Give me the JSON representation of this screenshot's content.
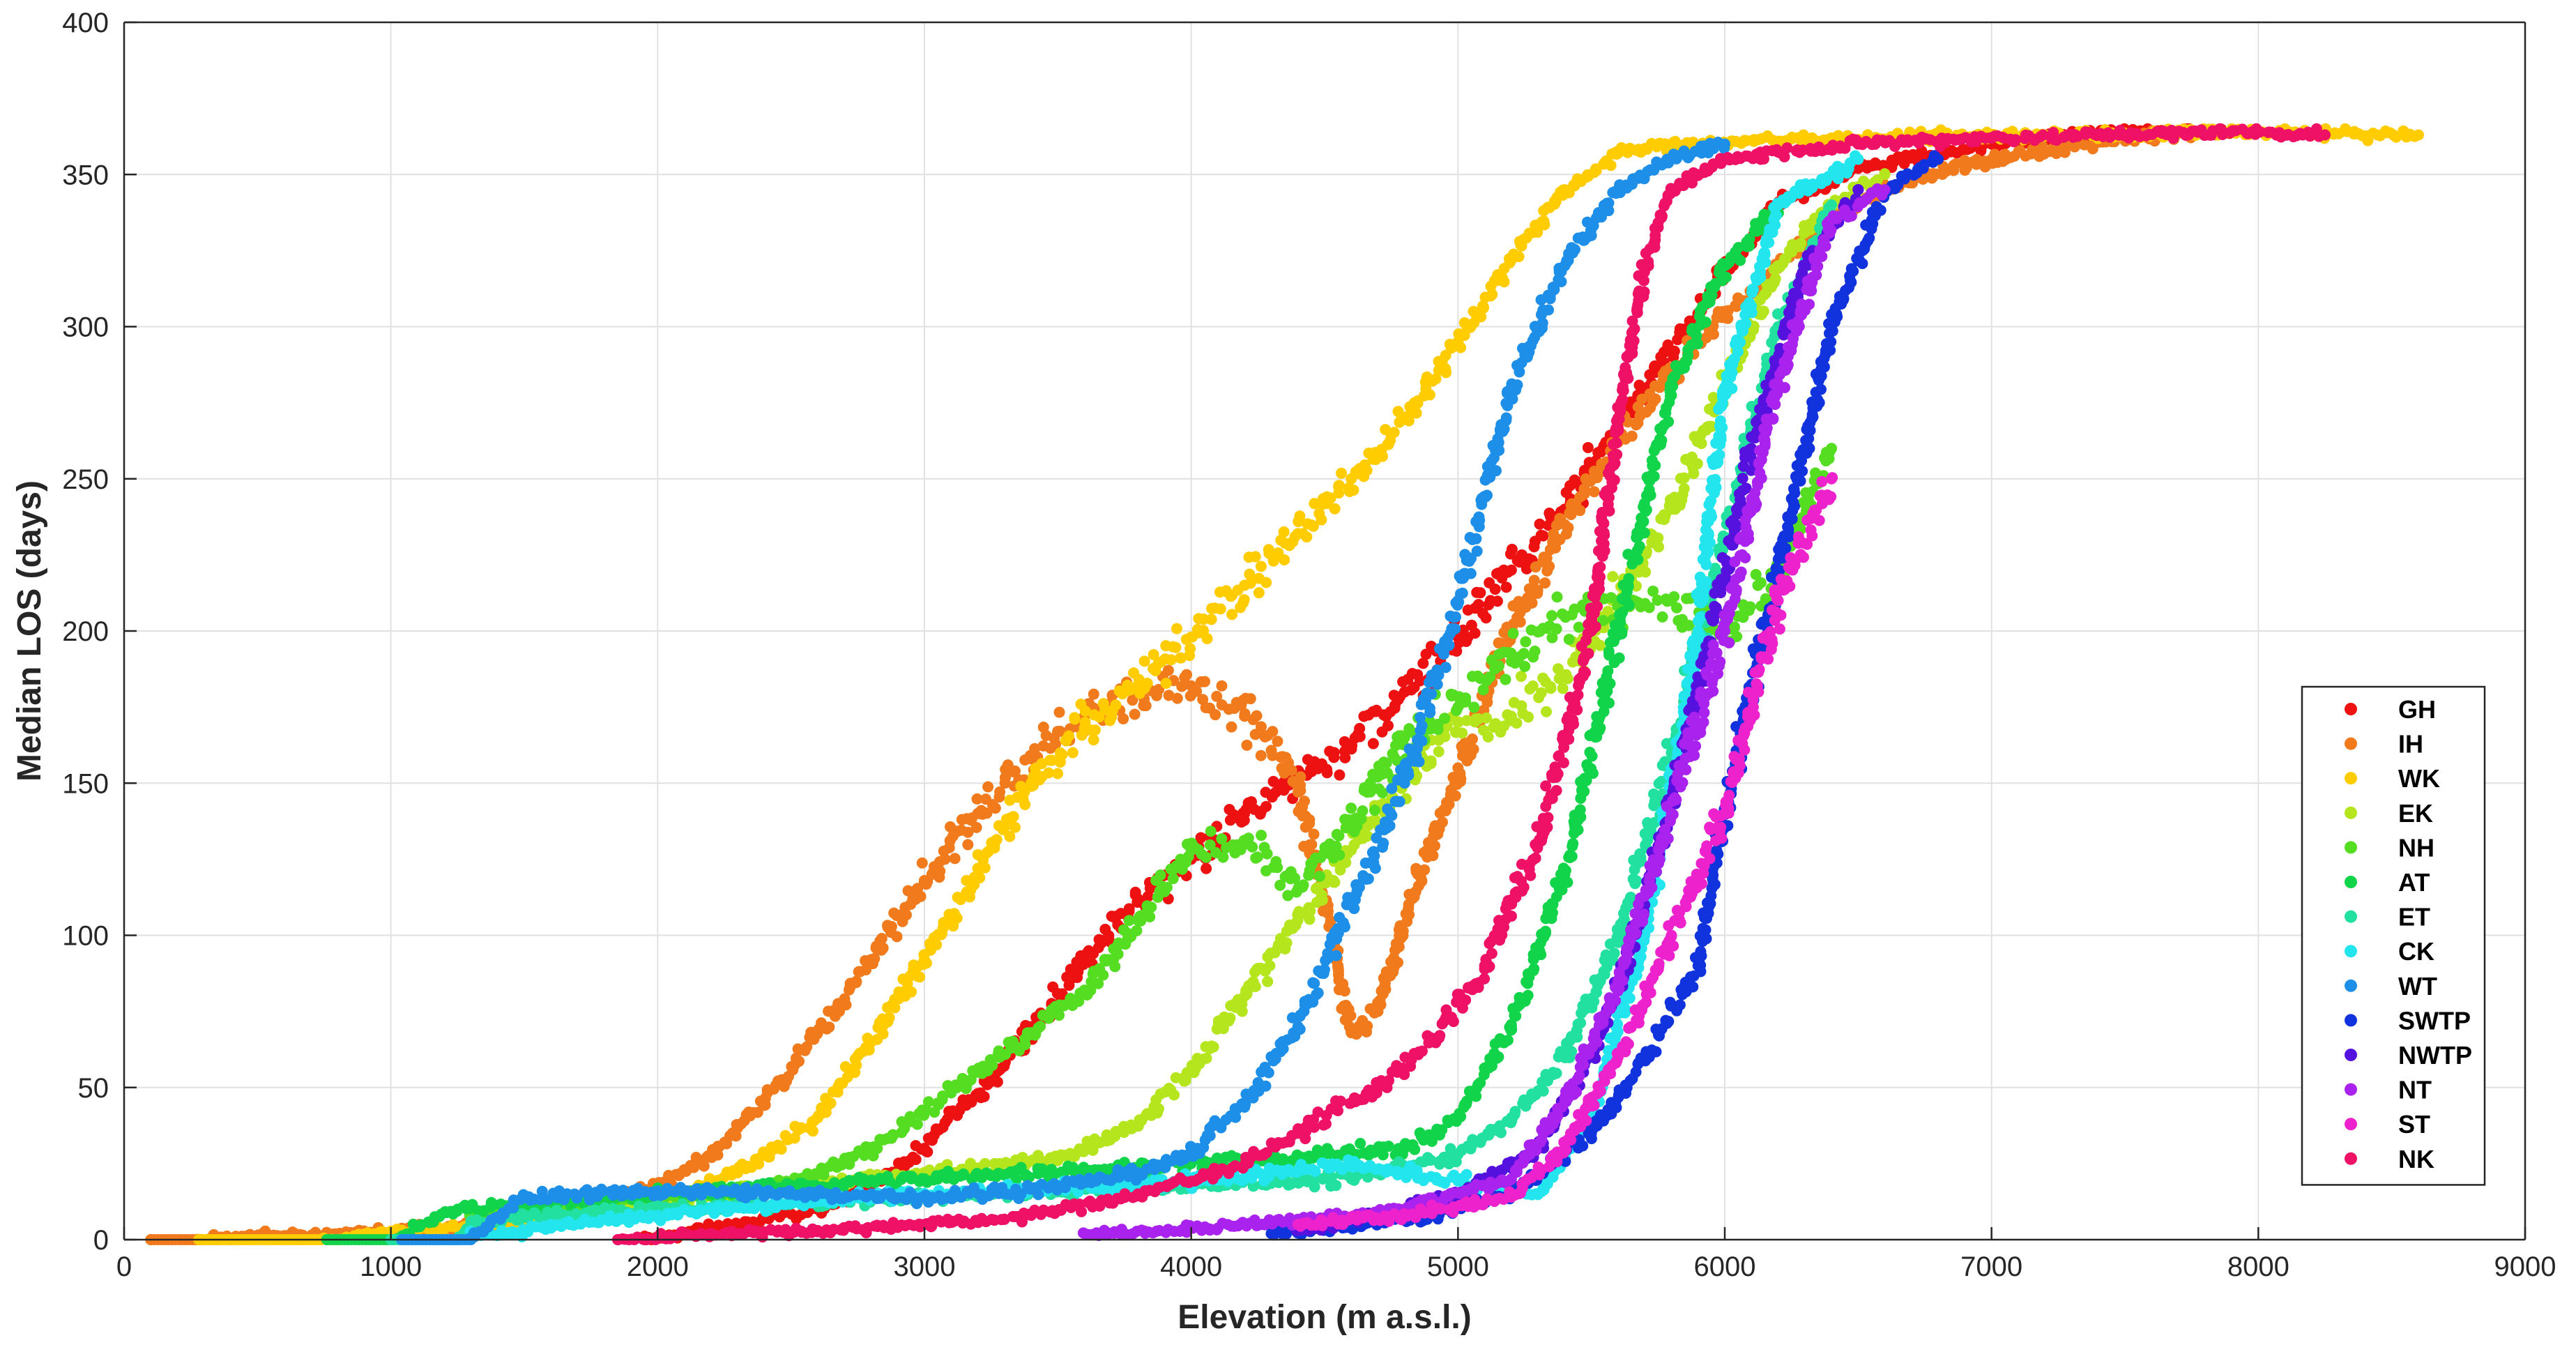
{
  "chart_data": {
    "type": "scatter",
    "title": "",
    "xlabel": "Elevation (m a.s.l.)",
    "ylabel": "Median LOS (days)",
    "xlim": [
      0,
      9000
    ],
    "ylim": [
      0,
      400
    ],
    "xticks": [
      0,
      1000,
      2000,
      3000,
      4000,
      5000,
      6000,
      7000,
      8000,
      9000
    ],
    "yticks": [
      0,
      50,
      100,
      150,
      200,
      250,
      300,
      350,
      400
    ],
    "xtick_labels": [
      "0",
      "1000",
      "2000",
      "3000",
      "4000",
      "5000",
      "6000",
      "7000",
      "8000",
      "9000"
    ],
    "ytick_labels": [
      "0",
      "50",
      "100",
      "150",
      "200",
      "250",
      "300",
      "350",
      "400"
    ],
    "grid": true,
    "legend_position": "lower-right",
    "series": [
      {
        "name": "GH",
        "color": "#ee1111",
        "points": [
          [
            1950,
            0
          ],
          [
            2300,
            5
          ],
          [
            2600,
            10
          ],
          [
            2800,
            18
          ],
          [
            3000,
            30
          ],
          [
            3200,
            48
          ],
          [
            3400,
            70
          ],
          [
            3600,
            92
          ],
          [
            3800,
            112
          ],
          [
            4000,
            125
          ],
          [
            4200,
            140
          ],
          [
            4400,
            152
          ],
          [
            4600,
            162
          ],
          [
            4800,
            180
          ],
          [
            5000,
            198
          ],
          [
            5200,
            220
          ],
          [
            5400,
            240
          ],
          [
            5600,
            268
          ],
          [
            5800,
            292
          ],
          [
            6000,
            318
          ],
          [
            6200,
            340
          ],
          [
            6500,
            352
          ],
          [
            7000,
            360
          ],
          [
            7500,
            364
          ],
          [
            7900,
            364
          ]
        ]
      },
      {
        "name": "IH",
        "color": "#f07a1c",
        "points": [
          [
            100,
            0
          ],
          [
            270,
            0
          ],
          [
            1500,
            5
          ],
          [
            2000,
            18
          ],
          [
            2200,
            28
          ],
          [
            2400,
            45
          ],
          [
            2600,
            68
          ],
          [
            2800,
            92
          ],
          [
            3000,
            118
          ],
          [
            3200,
            140
          ],
          [
            3400,
            158
          ],
          [
            3600,
            172
          ],
          [
            3800,
            180
          ],
          [
            4000,
            182
          ],
          [
            4200,
            172
          ],
          [
            4400,
            150
          ],
          [
            4550,
            90
          ],
          [
            4600,
            68
          ],
          [
            4700,
            75
          ],
          [
            4850,
            120
          ],
          [
            5000,
            155
          ],
          [
            5200,
            200
          ],
          [
            5400,
            235
          ],
          [
            5600,
            262
          ],
          [
            5800,
            285
          ],
          [
            6000,
            305
          ],
          [
            6200,
            320
          ],
          [
            6400,
            335
          ],
          [
            6600,
            345
          ],
          [
            7000,
            355
          ],
          [
            7500,
            362
          ],
          [
            7800,
            364
          ]
        ]
      },
      {
        "name": "WK",
        "color": "#ffcc00",
        "points": [
          [
            280,
            0
          ],
          [
            740,
            0
          ],
          [
            1500,
            6
          ],
          [
            2000,
            12
          ],
          [
            2300,
            22
          ],
          [
            2600,
            40
          ],
          [
            2800,
            65
          ],
          [
            3000,
            92
          ],
          [
            3200,
            122
          ],
          [
            3400,
            150
          ],
          [
            3600,
            168
          ],
          [
            3800,
            182
          ],
          [
            4000,
            198
          ],
          [
            4200,
            215
          ],
          [
            4400,
            232
          ],
          [
            4600,
            250
          ],
          [
            4800,
            270
          ],
          [
            5000,
            295
          ],
          [
            5200,
            322
          ],
          [
            5400,
            345
          ],
          [
            5600,
            357
          ],
          [
            5800,
            360
          ],
          [
            6400,
            362
          ],
          [
            7200,
            363
          ],
          [
            8000,
            364
          ],
          [
            8600,
            363
          ]
        ]
      },
      {
        "name": "EK",
        "color": "#b5e61d",
        "points": [
          [
            1550,
            5
          ],
          [
            2000,
            12
          ],
          [
            2500,
            18
          ],
          [
            3000,
            22
          ],
          [
            3500,
            26
          ],
          [
            3800,
            38
          ],
          [
            4000,
            55
          ],
          [
            4200,
            80
          ],
          [
            4400,
            105
          ],
          [
            4600,
            128
          ],
          [
            4800,
            150
          ],
          [
            5000,
            170
          ],
          [
            5200,
            172
          ],
          [
            5400,
            185
          ],
          [
            5600,
            210
          ],
          [
            5800,
            240
          ],
          [
            6000,
            280
          ],
          [
            6200,
            320
          ],
          [
            6400,
            340
          ],
          [
            6600,
            350
          ]
        ]
      },
      {
        "name": "NH",
        "color": "#55dd22",
        "points": [
          [
            1300,
            8
          ],
          [
            2000,
            14
          ],
          [
            2500,
            18
          ],
          [
            2800,
            30
          ],
          [
            3000,
            42
          ],
          [
            3200,
            55
          ],
          [
            3400,
            68
          ],
          [
            3600,
            82
          ],
          [
            3800,
            105
          ],
          [
            4000,
            128
          ],
          [
            4200,
            130
          ],
          [
            4400,
            115
          ],
          [
            4600,
            135
          ],
          [
            4800,
            165
          ],
          [
            5000,
            175
          ],
          [
            5200,
            190
          ],
          [
            5400,
            205
          ],
          [
            5600,
            210
          ],
          [
            5800,
            210
          ],
          [
            6000,
            200
          ],
          [
            6200,
            220
          ],
          [
            6400,
            260
          ]
        ]
      },
      {
        "name": "AT",
        "color": "#11d44a",
        "points": [
          [
            760,
            0
          ],
          [
            1000,
            0
          ],
          [
            1250,
            10
          ],
          [
            2000,
            15
          ],
          [
            3000,
            20
          ],
          [
            4000,
            25
          ],
          [
            4500,
            28
          ],
          [
            4800,
            30
          ],
          [
            5000,
            40
          ],
          [
            5200,
            70
          ],
          [
            5400,
            120
          ],
          [
            5600,
            200
          ],
          [
            5800,
            280
          ],
          [
            6000,
            320
          ],
          [
            6200,
            340
          ]
        ]
      },
      {
        "name": "ET",
        "color": "#22e0a0",
        "points": [
          [
            1000,
            0
          ],
          [
            1250,
            0
          ],
          [
            1300,
            6
          ],
          [
            2000,
            10
          ],
          [
            3000,
            14
          ],
          [
            4000,
            18
          ],
          [
            4600,
            20
          ],
          [
            5000,
            28
          ],
          [
            5200,
            40
          ],
          [
            5400,
            60
          ],
          [
            5600,
            100
          ],
          [
            5800,
            160
          ],
          [
            6000,
            230
          ],
          [
            6200,
            300
          ],
          [
            6400,
            340
          ]
        ]
      },
      {
        "name": "CK",
        "color": "#22e5ee",
        "points": [
          [
            1300,
            2
          ],
          [
            1460,
            2
          ],
          [
            1600,
            5
          ],
          [
            2000,
            8
          ],
          [
            2500,
            12
          ],
          [
            3000,
            15
          ],
          [
            3500,
            17
          ],
          [
            4000,
            19
          ],
          [
            4300,
            22
          ],
          [
            4600,
            25
          ],
          [
            4800,
            22
          ],
          [
            5000,
            20
          ],
          [
            5300,
            15
          ],
          [
            5500,
            40
          ],
          [
            5700,
            100
          ],
          [
            5900,
            200
          ],
          [
            6000,
            280
          ],
          [
            6200,
            340
          ],
          [
            6500,
            355
          ]
        ]
      },
      {
        "name": "WT",
        "color": "#1e8fe8",
        "points": [
          [
            1040,
            0
          ],
          [
            1300,
            0
          ],
          [
            1500,
            14
          ],
          [
            2000,
            16
          ],
          [
            2500,
            15
          ],
          [
            3000,
            14
          ],
          [
            3500,
            17
          ],
          [
            3800,
            22
          ],
          [
            4000,
            28
          ],
          [
            4200,
            45
          ],
          [
            4400,
            70
          ],
          [
            4600,
            110
          ],
          [
            4800,
            150
          ],
          [
            5000,
            210
          ],
          [
            5200,
            280
          ],
          [
            5400,
            320
          ],
          [
            5600,
            345
          ],
          [
            5800,
            355
          ],
          [
            6000,
            360
          ]
        ]
      },
      {
        "name": "SWTP",
        "color": "#1133dd",
        "points": [
          [
            4300,
            2
          ],
          [
            4600,
            4
          ],
          [
            4900,
            8
          ],
          [
            5200,
            15
          ],
          [
            5500,
            35
          ],
          [
            5700,
            60
          ],
          [
            5900,
            90
          ],
          [
            6000,
            140
          ],
          [
            6200,
            220
          ],
          [
            6400,
            300
          ],
          [
            6600,
            345
          ],
          [
            6800,
            355
          ]
        ]
      },
      {
        "name": "NWTP",
        "color": "#5511dd",
        "points": [
          [
            4400,
            3
          ],
          [
            4700,
            8
          ],
          [
            5000,
            15
          ],
          [
            5300,
            30
          ],
          [
            5500,
            60
          ],
          [
            5700,
            110
          ],
          [
            5900,
            180
          ],
          [
            6100,
            260
          ],
          [
            6300,
            320
          ],
          [
            6500,
            345
          ]
        ]
      },
      {
        "name": "NT",
        "color": "#aa22ee",
        "points": [
          [
            3600,
            2
          ],
          [
            4000,
            4
          ],
          [
            4400,
            6
          ],
          [
            4800,
            10
          ],
          [
            5200,
            20
          ],
          [
            5400,
            45
          ],
          [
            5600,
            85
          ],
          [
            5800,
            140
          ],
          [
            6000,
            200
          ],
          [
            6200,
            280
          ],
          [
            6400,
            335
          ],
          [
            6600,
            345
          ]
        ]
      },
      {
        "name": "ST",
        "color": "#ee22cc",
        "points": [
          [
            4400,
            5
          ],
          [
            4800,
            8
          ],
          [
            5200,
            14
          ],
          [
            5400,
            30
          ],
          [
            5600,
            60
          ],
          [
            5800,
            100
          ],
          [
            6000,
            140
          ],
          [
            6200,
            210
          ],
          [
            6400,
            250
          ]
        ]
      },
      {
        "name": "NK",
        "color": "#ee1166",
        "points": [
          [
            1850,
            0
          ],
          [
            2200,
            2
          ],
          [
            2600,
            3
          ],
          [
            3000,
            5
          ],
          [
            3400,
            8
          ],
          [
            3800,
            15
          ],
          [
            4100,
            22
          ],
          [
            4400,
            35
          ],
          [
            4700,
            50
          ],
          [
            4900,
            65
          ],
          [
            5100,
            90
          ],
          [
            5300,
            130
          ],
          [
            5500,
            200
          ],
          [
            5600,
            270
          ],
          [
            5700,
            320
          ],
          [
            5800,
            345
          ],
          [
            6000,
            355
          ],
          [
            6500,
            360
          ],
          [
            7000,
            362
          ],
          [
            7500,
            363
          ],
          [
            8000,
            364
          ],
          [
            8250,
            363
          ]
        ]
      }
    ]
  }
}
